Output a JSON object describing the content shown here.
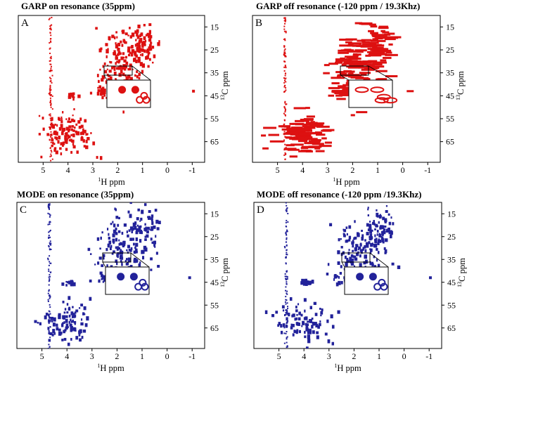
{
  "figure": {
    "x_tick_labels": [
      "5",
      "4",
      "3",
      "2",
      "1",
      "0",
      "-1"
    ],
    "y_tick_labels": [
      "15",
      "25",
      "35",
      "45",
      "55",
      "65"
    ],
    "xlabel_sup": "1",
    "xlabel_main": "H ppm",
    "ylabel_sup": "13",
    "ylabel_main": "C ppm"
  },
  "chart_data": [
    {
      "panel": "A",
      "title": "GARP on resonance (35ppm)",
      "type": "scatter",
      "color": "#dd1111",
      "x_axis": {
        "reversed": true,
        "range": [
          6.0,
          -1.5
        ],
        "ticks": [
          5,
          4,
          3,
          2,
          1,
          0,
          -1
        ]
      },
      "y_axis": {
        "reversed": true,
        "range": [
          10,
          74
        ],
        "ticks": [
          15,
          25,
          35,
          45,
          55,
          65
        ]
      },
      "inset": {
        "shows_region": {
          "x": [
            2.0,
            1.2
          ],
          "y": [
            41,
            45
          ]
        }
      },
      "clusters": [
        {
          "x": 4.7,
          "y": 42,
          "spread": [
            0.03,
            30
          ],
          "n": 95,
          "kind": "water-line"
        },
        {
          "x": 1.8,
          "y": 31,
          "spread": [
            0.9,
            13
          ],
          "n": 150
        },
        {
          "x": 0.9,
          "y": 22,
          "spread": [
            0.5,
            8
          ],
          "n": 65
        },
        {
          "x": 2.4,
          "y": 43,
          "spread": [
            0.5,
            2
          ],
          "n": 30
        },
        {
          "x": 4.0,
          "y": 62,
          "spread": [
            0.9,
            8
          ],
          "n": 110
        },
        {
          "x": 3.9,
          "y": 45,
          "spread": [
            0.25,
            1
          ],
          "n": 14
        }
      ],
      "peaks": [
        {
          "x": 1.65,
          "y": 43,
          "label": "inset"
        },
        {
          "x": 1.45,
          "y": 43
        },
        {
          "x": 1.25,
          "y": 43
        },
        {
          "x": -1.05,
          "y": 43
        },
        {
          "x": 0.7,
          "y": 14
        },
        {
          "x": 1.65,
          "y": 18
        }
      ],
      "inset_peaks": [
        {
          "x": 1.75,
          "y": 42
        },
        {
          "x": 1.45,
          "y": 42
        },
        {
          "x": 1.25,
          "y": 43.5
        },
        {
          "x": 1.2,
          "y": 44.5
        },
        {
          "x": 1.35,
          "y": 44.5
        }
      ]
    },
    {
      "panel": "B",
      "title": "GARP off resonance (-120 ppm / 19.3Khz)",
      "type": "scatter",
      "color": "#dd1111",
      "x_axis": {
        "reversed": true,
        "range": [
          6.0,
          -1.5
        ],
        "ticks": [
          5,
          4,
          3,
          2,
          1,
          0,
          -1
        ]
      },
      "y_axis": {
        "reversed": true,
        "range": [
          10,
          74
        ],
        "ticks": [
          15,
          25,
          35,
          45,
          55,
          65
        ]
      },
      "inset": {
        "shows_region": {
          "x": [
            2.0,
            1.2
          ],
          "y": [
            41,
            45
          ]
        }
      },
      "clusters": [
        {
          "x": 4.7,
          "y": 42,
          "spread": [
            0.03,
            30
          ],
          "n": 95,
          "kind": "water-line"
        },
        {
          "x": 1.8,
          "y": 31,
          "spread": [
            0.9,
            13
          ],
          "n": 120,
          "kind": "elongated"
        },
        {
          "x": 1.0,
          "y": 22,
          "spread": [
            0.6,
            8
          ],
          "n": 55,
          "kind": "elongated"
        },
        {
          "x": 2.4,
          "y": 43,
          "spread": [
            0.5,
            2
          ],
          "n": 26,
          "kind": "elongated"
        },
        {
          "x": 4.0,
          "y": 62,
          "spread": [
            0.9,
            8
          ],
          "n": 95,
          "kind": "elongated"
        }
      ],
      "peaks": [
        {
          "x": 1.6,
          "y": 43
        },
        {
          "x": 1.3,
          "y": 43
        },
        {
          "x": -0.3,
          "y": 43
        },
        {
          "x": 1.2,
          "y": 14
        }
      ],
      "inset_peaks": [
        {
          "x": 1.8,
          "y": 42
        },
        {
          "x": 1.45,
          "y": 42
        },
        {
          "x": 1.3,
          "y": 43.8
        },
        {
          "x": 1.15,
          "y": 44.6
        },
        {
          "x": 1.35,
          "y": 44.6
        }
      ]
    },
    {
      "panel": "C",
      "title": "MODE on resonance (35ppm)",
      "type": "scatter",
      "color": "#22229a",
      "x_axis": {
        "reversed": true,
        "range": [
          6.0,
          -1.5
        ],
        "ticks": [
          5,
          4,
          3,
          2,
          1,
          0,
          -1
        ]
      },
      "y_axis": {
        "reversed": true,
        "range": [
          10,
          74
        ],
        "ticks": [
          15,
          25,
          35,
          45,
          55,
          65
        ]
      },
      "inset": {
        "shows_region": {
          "x": [
            2.0,
            1.2
          ],
          "y": [
            41,
            45
          ]
        }
      },
      "clusters": [
        {
          "x": 4.7,
          "y": 42,
          "spread": [
            0.03,
            30
          ],
          "n": 95,
          "kind": "water-line"
        },
        {
          "x": 1.8,
          "y": 31,
          "spread": [
            0.9,
            13
          ],
          "n": 140
        },
        {
          "x": 0.9,
          "y": 22,
          "spread": [
            0.5,
            8
          ],
          "n": 60
        },
        {
          "x": 2.4,
          "y": 43,
          "spread": [
            0.5,
            2
          ],
          "n": 28
        },
        {
          "x": 4.0,
          "y": 62,
          "spread": [
            0.9,
            8
          ],
          "n": 95
        },
        {
          "x": 3.9,
          "y": 45,
          "spread": [
            0.25,
            1
          ],
          "n": 12
        }
      ],
      "peaks": [
        {
          "x": 1.65,
          "y": 43
        },
        {
          "x": 1.45,
          "y": 43
        },
        {
          "x": 1.25,
          "y": 43
        },
        {
          "x": -0.9,
          "y": 43
        },
        {
          "x": 0.7,
          "y": 14
        },
        {
          "x": 0.35,
          "y": 38
        }
      ],
      "inset_peaks": [
        {
          "x": 1.75,
          "y": 42
        },
        {
          "x": 1.45,
          "y": 42
        },
        {
          "x": 1.25,
          "y": 43.5
        },
        {
          "x": 1.2,
          "y": 44.5
        },
        {
          "x": 1.35,
          "y": 44.5
        }
      ]
    },
    {
      "panel": "D",
      "title": "MODE off resonance (-120 ppm /19.3Khz)",
      "type": "scatter",
      "color": "#22229a",
      "x_axis": {
        "reversed": true,
        "range": [
          6.0,
          -1.5
        ],
        "ticks": [
          5,
          4,
          3,
          2,
          1,
          0,
          -1
        ]
      },
      "y_axis": {
        "reversed": true,
        "range": [
          10,
          74
        ],
        "ticks": [
          15,
          25,
          35,
          45,
          55,
          65
        ]
      },
      "inset": {
        "shows_region": {
          "x": [
            2.0,
            1.2
          ],
          "y": [
            41,
            45
          ]
        }
      },
      "clusters": [
        {
          "x": 4.7,
          "y": 42,
          "spread": [
            0.03,
            30
          ],
          "n": 95,
          "kind": "water-line"
        },
        {
          "x": 1.8,
          "y": 31,
          "spread": [
            0.9,
            13
          ],
          "n": 140
        },
        {
          "x": 0.9,
          "y": 22,
          "spread": [
            0.5,
            8
          ],
          "n": 60
        },
        {
          "x": 2.4,
          "y": 43,
          "spread": [
            0.5,
            2
          ],
          "n": 28
        },
        {
          "x": 4.0,
          "y": 62,
          "spread": [
            0.9,
            8
          ],
          "n": 95
        },
        {
          "x": 3.9,
          "y": 45,
          "spread": [
            0.25,
            1
          ],
          "n": 12
        }
      ],
      "peaks": [
        {
          "x": 1.65,
          "y": 43
        },
        {
          "x": 1.45,
          "y": 43
        },
        {
          "x": 1.25,
          "y": 43
        },
        {
          "x": -1.05,
          "y": 43
        },
        {
          "x": 0.7,
          "y": 14
        },
        {
          "x": 0.45,
          "y": 37
        }
      ],
      "inset_peaks": [
        {
          "x": 1.75,
          "y": 42
        },
        {
          "x": 1.45,
          "y": 42
        },
        {
          "x": 1.25,
          "y": 43.5
        },
        {
          "x": 1.2,
          "y": 44.5
        },
        {
          "x": 1.35,
          "y": 44.5
        }
      ]
    }
  ]
}
